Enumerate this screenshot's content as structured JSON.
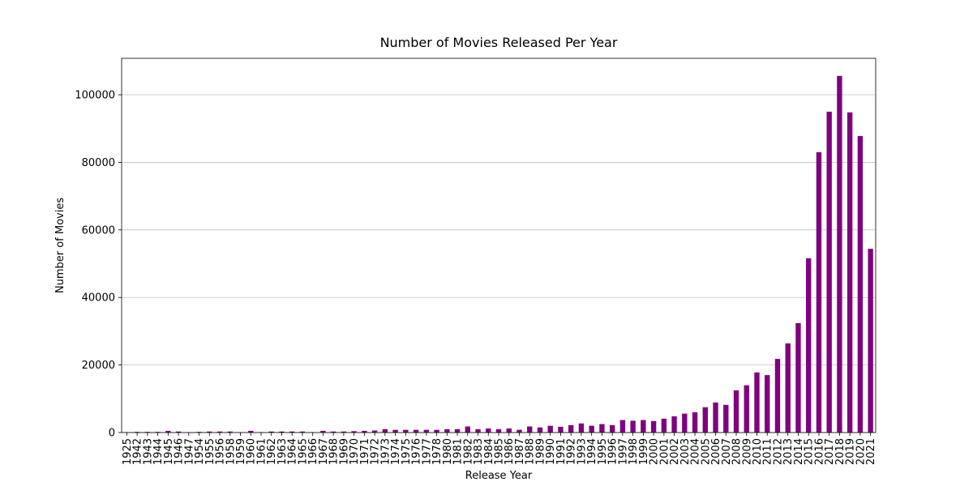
{
  "chart_data": {
    "type": "bar",
    "title": "Number of Movies Released Per Year",
    "x_label": "Release Year",
    "y_label": "Number of Movies",
    "categories": [
      "1925",
      "1942",
      "1943",
      "1944",
      "1945",
      "1946",
      "1947",
      "1954",
      "1955",
      "1956",
      "1958",
      "1959",
      "1960",
      "1961",
      "1962",
      "1963",
      "1964",
      "1965",
      "1966",
      "1967",
      "1968",
      "1969",
      "1970",
      "1971",
      "1972",
      "1973",
      "1974",
      "1975",
      "1976",
      "1977",
      "1978",
      "1980",
      "1981",
      "1982",
      "1983",
      "1984",
      "1985",
      "1986",
      "1987",
      "1988",
      "1989",
      "1990",
      "1991",
      "1992",
      "1993",
      "1994",
      "1995",
      "1996",
      "1997",
      "1998",
      "1999",
      "2000",
      "2001",
      "2002",
      "2003",
      "2004",
      "2005",
      "2006",
      "2007",
      "2008",
      "2009",
      "2010",
      "2011",
      "2012",
      "2013",
      "2014",
      "2015",
      "2016",
      "2017",
      "2018",
      "2019",
      "2020",
      "2021"
    ],
    "values": [
      50,
      200,
      200,
      200,
      500,
      300,
      50,
      200,
      300,
      300,
      300,
      100,
      500,
      100,
      300,
      300,
      300,
      300,
      100,
      500,
      300,
      300,
      400,
      500,
      600,
      1000,
      800,
      800,
      800,
      800,
      800,
      1000,
      1000,
      1800,
      1000,
      1200,
      1000,
      1200,
      800,
      1800,
      1500,
      2000,
      1700,
      2200,
      2700,
      2000,
      2500,
      2200,
      3700,
      3500,
      3700,
      3400,
      4100,
      4800,
      5600,
      6000,
      7500,
      8900,
      8200,
      12500,
      14000,
      17800,
      17000,
      21800,
      26400,
      32400,
      51600,
      83000,
      95000,
      105600,
      94800,
      87800,
      54400
    ],
    "color": "#800080",
    "ylim": [
      0,
      110800
    ],
    "yticks": [
      0,
      20000,
      40000,
      60000,
      80000,
      100000
    ],
    "grid": true
  }
}
